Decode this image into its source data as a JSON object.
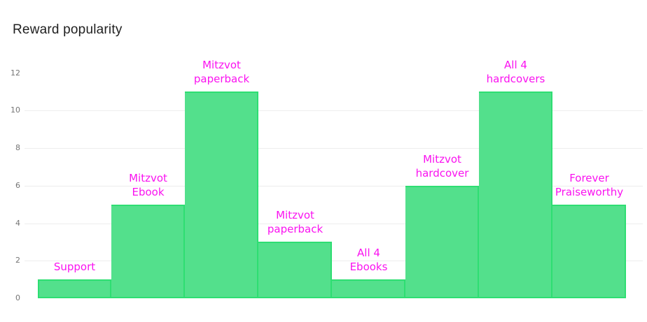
{
  "title": "Reward popularity",
  "chart_data": {
    "type": "bar",
    "style": "histogram-adjacent-bars",
    "title": "Reward popularity",
    "categories": [
      "Support",
      "Mitzvot Ebook",
      "Mitzvot paperback",
      "Mitzvot paperback",
      "All 4 Ebooks",
      "Mitzvot hardcover",
      "All 4 hardcovers",
      "Forever Praiseworthy"
    ],
    "values": [
      1,
      5,
      11,
      3,
      1,
      6,
      11,
      5
    ],
    "label_lines": [
      [
        "Support"
      ],
      [
        "Mitzvot",
        "Ebook"
      ],
      [
        "Mitzvot",
        "paperback"
      ],
      [
        "Mitzvot",
        "paperback"
      ],
      [
        "All 4",
        "Ebooks"
      ],
      [
        "Mitzvot",
        "hardcover"
      ],
      [
        "All 4",
        "hardcovers"
      ],
      [
        "Forever",
        "Praiseworthy"
      ]
    ],
    "xlabel": "",
    "ylabel": "",
    "y_ticks": [
      0,
      2,
      4,
      6,
      8,
      10,
      12
    ],
    "gridline_ticks": [
      2,
      4,
      6,
      8,
      10
    ],
    "ylim": [
      0,
      12
    ],
    "grid": "horizontal",
    "legend": "none",
    "bar_labels_position": "above-bars",
    "colors": {
      "bar_fill": "#53e08c",
      "bar_border": "#2ede72",
      "bar_label_text": "#fa12f0",
      "grid_line": "#ededed",
      "tick_text": "#757575",
      "title_text": "#1f1f1f",
      "background": "#ffffff"
    }
  }
}
